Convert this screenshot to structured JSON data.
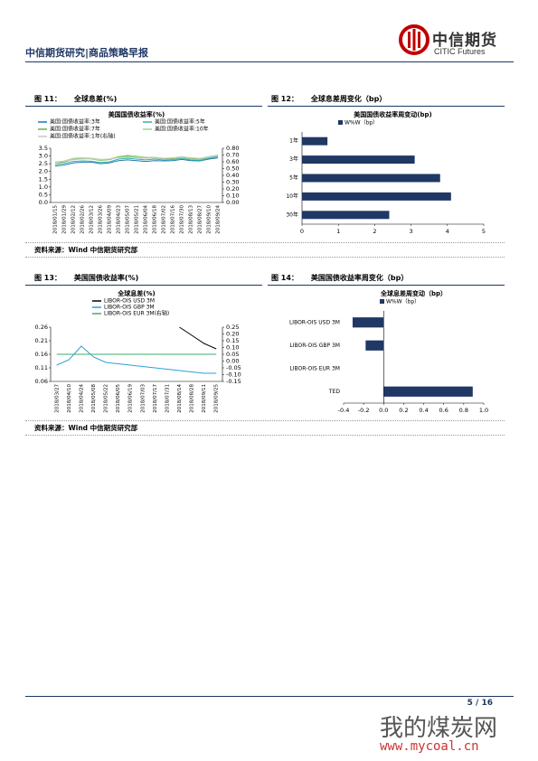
{
  "header": {
    "title": "中信期货研究|商品策略早报",
    "logo_cn": "中信期货",
    "logo_en": "CITIC Futures"
  },
  "figures": [
    {
      "number": "图 11：",
      "caption": "全球息差(%)"
    },
    {
      "number": "图 12：",
      "caption": "全球息差周变化（bp）"
    },
    {
      "number": "图 13：",
      "caption": "美国国债收益率(%)"
    },
    {
      "number": "图 14：",
      "caption": "美国国债收益率周变化（bp）"
    }
  ],
  "sources": [
    "资料来源：Wind 中信期货研究部",
    "资料来源：Wind 中信期货研究部"
  ],
  "footer": {
    "page": "5 / 16"
  },
  "watermark": {
    "cn": "我的煤炭网",
    "url": "www.mycoal.cn"
  },
  "chart_data": [
    {
      "type": "line",
      "title": "美国国债收益率(%)",
      "x": [
        "2018/01/15",
        "2018/01/29",
        "2018/02/12",
        "2018/02/26",
        "2018/03/12",
        "2018/03/26",
        "2018/04/09",
        "2018/04/23",
        "2018/05/07",
        "2018/05/21",
        "2018/06/04",
        "2018/06/18",
        "2018/07/02",
        "2018/07/16",
        "2018/07/30",
        "2018/08/13",
        "2018/08/27",
        "2018/09/10",
        "2018/09/24"
      ],
      "series": [
        {
          "name": "美国:国债收益率:3年",
          "color": "#1f77b4",
          "values": [
            2.35,
            2.42,
            2.55,
            2.6,
            2.6,
            2.5,
            2.55,
            2.7,
            2.75,
            2.7,
            2.65,
            2.7,
            2.68,
            2.7,
            2.78,
            2.7,
            2.68,
            2.8,
            2.88
          ]
        },
        {
          "name": "美国:国债收益率:5年",
          "color": "#2bb5a5",
          "values": [
            2.45,
            2.52,
            2.65,
            2.68,
            2.66,
            2.58,
            2.62,
            2.8,
            2.85,
            2.8,
            2.75,
            2.8,
            2.74,
            2.76,
            2.85,
            2.75,
            2.72,
            2.85,
            2.95
          ]
        },
        {
          "name": "美国:国债收益率:7年",
          "color": "#70ad47",
          "values": [
            2.55,
            2.62,
            2.78,
            2.82,
            2.8,
            2.72,
            2.76,
            2.92,
            2.98,
            2.92,
            2.86,
            2.88,
            2.82,
            2.83,
            2.92,
            2.83,
            2.8,
            2.92,
            3.02
          ]
        },
        {
          "name": "美国:国债收益率:10年",
          "color": "#a9d18e",
          "values": [
            2.55,
            2.68,
            2.85,
            2.88,
            2.86,
            2.78,
            2.8,
            2.97,
            3.05,
            3.0,
            2.92,
            2.92,
            2.86,
            2.86,
            2.96,
            2.86,
            2.84,
            2.96,
            3.06
          ]
        },
        {
          "name": "美国:国债收益率:1年(右轴)",
          "color": "#c9c9c9",
          "axis": "y2",
          "values": [
            0.6,
            0.61,
            0.63,
            0.64,
            0.64,
            0.63,
            0.64,
            0.66,
            0.67,
            0.66,
            0.65,
            0.66,
            0.65,
            0.66,
            0.67,
            0.66,
            0.65,
            0.67,
            0.69
          ]
        }
      ],
      "ylim": [
        0,
        3.5
      ],
      "yticks": [
        {
          "value": 0,
          "label": "0.0"
        },
        0.5,
        {
          "value": 1,
          "label": "1.0"
        },
        1.5,
        {
          "value": 2,
          "label": "2.0"
        },
        2.5,
        {
          "value": 3,
          "label": "3.0"
        },
        3.5
      ],
      "y2lim": [
        0,
        0.8
      ],
      "y2ticks": [
        {
          "value": 0,
          "label": "0.00"
        },
        {
          "value": 0.1,
          "label": "0.10"
        },
        {
          "value": 0.2,
          "label": "0.20"
        },
        {
          "value": 0.3,
          "label": "0.30"
        },
        {
          "value": 0.4,
          "label": "0.40"
        },
        {
          "value": 0.5,
          "label": "0.50"
        },
        {
          "value": 0.6,
          "label": "0.60"
        },
        {
          "value": 0.7,
          "label": "0.70"
        },
        {
          "value": 0.8,
          "label": "0.80"
        }
      ]
    },
    {
      "type": "hbar",
      "title": "美国国债收益率周变动(bp)",
      "categories": [
        "1年",
        "3年",
        "5年",
        "10年",
        "30年"
      ],
      "series": [
        {
          "name": "W%W（bp）",
          "color": "#1f3864",
          "values": [
            0.7,
            3.1,
            3.8,
            4.1,
            2.4
          ]
        }
      ],
      "xlim": [
        0,
        5
      ],
      "xticks": [
        0,
        1,
        2,
        3,
        4,
        5
      ]
    },
    {
      "type": "line",
      "title": "全球息差(%)",
      "x": [
        "2018/03/27",
        "2018/04/10",
        "2018/04/24",
        "2018/05/08",
        "2018/05/22",
        "2018/06/05",
        "2018/06/19",
        "2018/07/03",
        "2018/07/17",
        "2018/07/31",
        "2018/08/14",
        "2018/08/28",
        "2018/09/11",
        "2018/09/25"
      ],
      "series": [
        {
          "name": "LIBOR-OIS USD 3M",
          "color": "#000000",
          "values": [
            null,
            null,
            null,
            null,
            null,
            null,
            null,
            null,
            null,
            null,
            0.26,
            0.23,
            0.2,
            0.18
          ]
        },
        {
          "name": "LIBOR-OIS GBP 3M",
          "color": "#2e9fd8",
          "values": [
            0.12,
            0.14,
            0.19,
            0.15,
            0.13,
            0.125,
            0.12,
            0.115,
            0.11,
            0.105,
            0.1,
            0.095,
            0.09,
            0.09
          ]
        },
        {
          "name": "LIBOR-OIS EUR 3M(右轴)",
          "color": "#3aaf6e",
          "axis": "y2",
          "values": [
            0.05,
            0.05,
            0.05,
            0.05,
            0.05,
            0.05,
            0.05,
            0.05,
            0.05,
            0.05,
            0.05,
            0.05,
            0.05,
            0.05
          ]
        }
      ],
      "ylim": [
        0.06,
        0.26
      ],
      "yticks": [
        0.06,
        0.11,
        0.16,
        0.21,
        0.26
      ],
      "y2lim": [
        -0.15,
        0.25
      ],
      "y2ticks": [
        0.25,
        {
          "value": 0.2,
          "label": "0.20"
        },
        0.15,
        {
          "value": 0.1,
          "label": "0.10"
        },
        0.05,
        {
          "value": 0,
          "label": "0.00"
        },
        -0.05,
        {
          "value": -0.1,
          "label": "-0.10"
        },
        -0.15
      ]
    },
    {
      "type": "hbar",
      "title": "全球息差周变动（bp）",
      "categories": [
        "LIBOR-OIS USD 3M",
        "LIBOR-OIS GBP 3M",
        "LIBOR-OIS EUR 3M",
        "TED"
      ],
      "series": [
        {
          "name": "W%W（bp）",
          "color": "#1f3864",
          "values": [
            -0.31,
            -0.18,
            0,
            0.89
          ]
        }
      ],
      "xlim": [
        -0.4,
        1.0
      ],
      "xticks": [
        -0.4,
        -0.2,
        {
          "value": 0,
          "label": "0.0"
        },
        0.2,
        0.4,
        0.6,
        0.8,
        {
          "value": 1,
          "label": "1.0"
        }
      ]
    }
  ]
}
